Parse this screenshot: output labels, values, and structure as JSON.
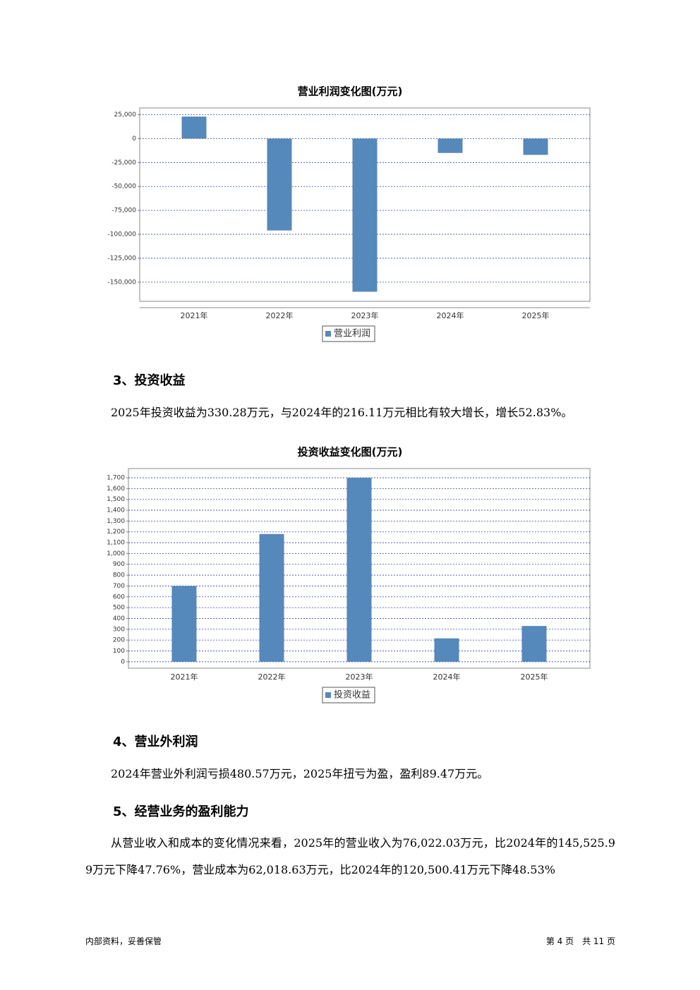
{
  "chart_data": [
    {
      "type": "bar",
      "title": "营业利润变化图(万元)",
      "categories": [
        "2021年",
        "2022年",
        "2023年",
        "2024年",
        "2025年"
      ],
      "series": [
        {
          "name": "营业利润",
          "color": "#5588bb",
          "values": [
            23000,
            -96000,
            -160000,
            -15000,
            -17000
          ]
        }
      ],
      "ylim": [
        -170000,
        32000
      ],
      "yticks": [
        {
          "value": 25000,
          "label": "25,000"
        },
        0,
        {
          "value": -25000,
          "label": "-25,000"
        },
        {
          "value": -50000,
          "label": "-50,000"
        },
        {
          "value": -75000,
          "label": "-75,000"
        },
        {
          "value": -100000,
          "label": "-100,000"
        },
        {
          "value": -125000,
          "label": "-125,000"
        },
        {
          "value": -150000,
          "label": "-150,000"
        }
      ],
      "grid": true,
      "legend": "bottom"
    },
    {
      "type": "bar",
      "title": "投资收益变化图(万元)",
      "categories": [
        "2021年",
        "2022年",
        "2023年",
        "2024年",
        "2025年"
      ],
      "series": [
        {
          "name": "投资收益",
          "color": "#5588bb",
          "values": [
            700,
            1180,
            1700,
            216.11,
            330.28
          ]
        }
      ],
      "ylim": [
        -60,
        1785
      ],
      "yticks": [
        0,
        100,
        200,
        300,
        400,
        500,
        600,
        700,
        800,
        900,
        {
          "value": 1000,
          "label": "1,000"
        },
        {
          "value": 1100,
          "label": "1,100"
        },
        {
          "value": 1200,
          "label": "1,200"
        },
        {
          "value": 1300,
          "label": "1,300"
        },
        {
          "value": 1400,
          "label": "1,400"
        },
        {
          "value": 1500,
          "label": "1,500"
        },
        {
          "value": 1600,
          "label": "1,600"
        },
        {
          "value": 1700,
          "label": "1,700"
        }
      ],
      "grid": true,
      "legend": "bottom"
    }
  ],
  "sections": [
    {
      "heading": "3、投资收益",
      "paragraph": "2025年投资收益为330.28万元，与2024年的216.11万元相比有较大增长，增长52.83%。"
    },
    {
      "heading": "4、营业外利润",
      "paragraph": "2024年营业外利润亏损480.57万元，2025年扭亏为盈，盈利89.47万元。"
    },
    {
      "heading": "5、经营业务的盈利能力",
      "paragraph": "从营业收入和成本的变化情况来看，2025年的营业收入为76,022.03万元，比2024年的145,525.99万元下降47.76%，营业成本为62,018.63万元，比2024年的120,500.41万元下降48.53%"
    }
  ],
  "footer": {
    "left": "内部资料，妥善保管",
    "right": "第 4 页　共 11 页"
  }
}
